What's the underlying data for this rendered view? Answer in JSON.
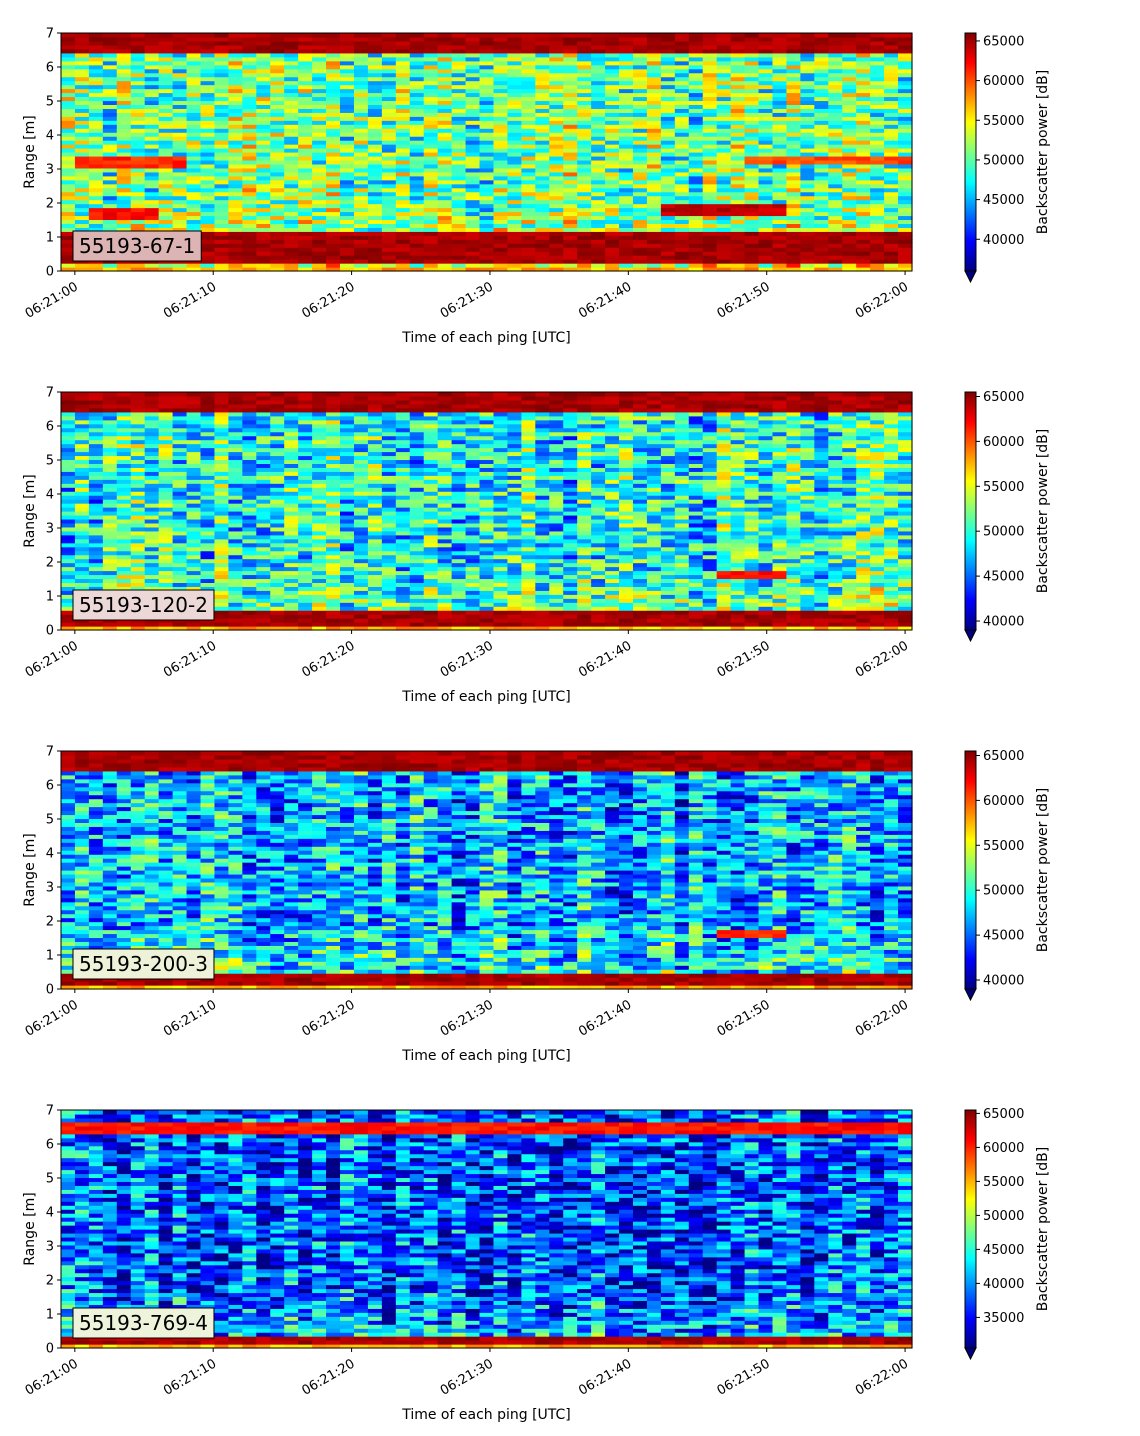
{
  "chart_data": [
    {
      "type": "heatmap",
      "label": "55193-67-1",
      "xlabel": "Time of each ping [UTC]",
      "ylabel": "Range [m]",
      "xticks": [
        "06:21:00",
        "06:21:10",
        "06:21:20",
        "06:21:30",
        "06:21:40",
        "06:21:50",
        "06:22:00"
      ],
      "xlim": [
        "06:20:59",
        "06:22:00.5"
      ],
      "yticks": [
        0,
        1,
        2,
        3,
        4,
        5,
        6,
        7
      ],
      "ylim": [
        0,
        7
      ],
      "colorbar": {
        "label": "Backscatter power [dB]",
        "min": 36000,
        "max": 66000,
        "ticks": [
          40000,
          45000,
          50000,
          55000,
          60000,
          65000
        ],
        "extend": "min",
        "colormap": "jet"
      },
      "features": [
        {
          "range": [
            0.2,
            1.2
          ],
          "level": "max"
        },
        {
          "range": [
            6.4,
            7.0
          ],
          "level": "max"
        },
        {
          "range": [
            3.0,
            3.4
          ],
          "time": [
            "06:21:00",
            "06:21:08"
          ],
          "level": 61000
        },
        {
          "range": [
            1.5,
            1.9
          ],
          "time": [
            "06:21:01",
            "06:21:06"
          ],
          "level": 62000
        },
        {
          "range": [
            1.6,
            2.0
          ],
          "time": [
            "06:21:42",
            "06:21:51"
          ],
          "level": 64000
        },
        {
          "range": [
            3.1,
            3.4
          ],
          "time": [
            "06:21:48",
            "06:22:00"
          ],
          "level": 60000
        }
      ]
    },
    {
      "type": "heatmap",
      "label": "55193-120-2",
      "xlabel": "Time of each ping [UTC]",
      "ylabel": "Range [m]",
      "xticks": [
        "06:21:00",
        "06:21:10",
        "06:21:20",
        "06:21:30",
        "06:21:40",
        "06:21:50",
        "06:22:00"
      ],
      "xlim": [
        "06:20:59",
        "06:22:00.5"
      ],
      "yticks": [
        0,
        1,
        2,
        3,
        4,
        5,
        6,
        7
      ],
      "ylim": [
        0,
        7
      ],
      "colorbar": {
        "label": "Backscatter power [dB]",
        "min": 39000,
        "max": 65500,
        "ticks": [
          40000,
          45000,
          50000,
          55000,
          60000,
          65000
        ],
        "extend": "min",
        "colormap": "jet"
      },
      "features": [
        {
          "range": [
            0.15,
            0.55
          ],
          "level": "max"
        },
        {
          "range": [
            6.4,
            7.0
          ],
          "level": "max"
        },
        {
          "range": [
            1.5,
            1.7
          ],
          "time": [
            "06:21:46",
            "06:21:51"
          ],
          "level": 62000
        }
      ]
    },
    {
      "type": "heatmap",
      "label": "55193-200-3",
      "xlabel": "Time of each ping [UTC]",
      "ylabel": "Range [m]",
      "xticks": [
        "06:21:00",
        "06:21:10",
        "06:21:20",
        "06:21:30",
        "06:21:40",
        "06:21:50",
        "06:22:00"
      ],
      "xlim": [
        "06:20:59",
        "06:22:00.5"
      ],
      "yticks": [
        0,
        1,
        2,
        3,
        4,
        5,
        6,
        7
      ],
      "ylim": [
        0,
        7
      ],
      "colorbar": {
        "label": "Backscatter power [dB]",
        "min": 39000,
        "max": 65500,
        "ticks": [
          40000,
          45000,
          50000,
          55000,
          60000,
          65000
        ],
        "extend": "min",
        "colormap": "jet"
      },
      "features": [
        {
          "range": [
            0.1,
            0.45
          ],
          "level": "max"
        },
        {
          "range": [
            6.4,
            7.0
          ],
          "level": "max"
        },
        {
          "range": [
            1.5,
            1.7
          ],
          "time": [
            "06:21:46",
            "06:21:51"
          ],
          "level": 61000
        }
      ]
    },
    {
      "type": "heatmap",
      "label": "55193-769-4",
      "xlabel": "Time of each ping [UTC]",
      "ylabel": "Range [m]",
      "xticks": [
        "06:21:00",
        "06:21:10",
        "06:21:20",
        "06:21:30",
        "06:21:40",
        "06:21:50",
        "06:22:00"
      ],
      "xlim": [
        "06:20:59",
        "06:22:00.5"
      ],
      "yticks": [
        0,
        1,
        2,
        3,
        4,
        5,
        6,
        7
      ],
      "ylim": [
        0,
        7
      ],
      "colorbar": {
        "label": "Backscatter power [dB]",
        "min": 30500,
        "max": 65500,
        "ticks": [
          35000,
          40000,
          45000,
          50000,
          55000,
          60000,
          65000
        ],
        "extend": "min",
        "colormap": "jet"
      },
      "features": [
        {
          "range": [
            0.15,
            0.35
          ],
          "level": "max"
        },
        {
          "range": [
            6.3,
            6.7
          ],
          "level": 62000
        }
      ]
    }
  ]
}
